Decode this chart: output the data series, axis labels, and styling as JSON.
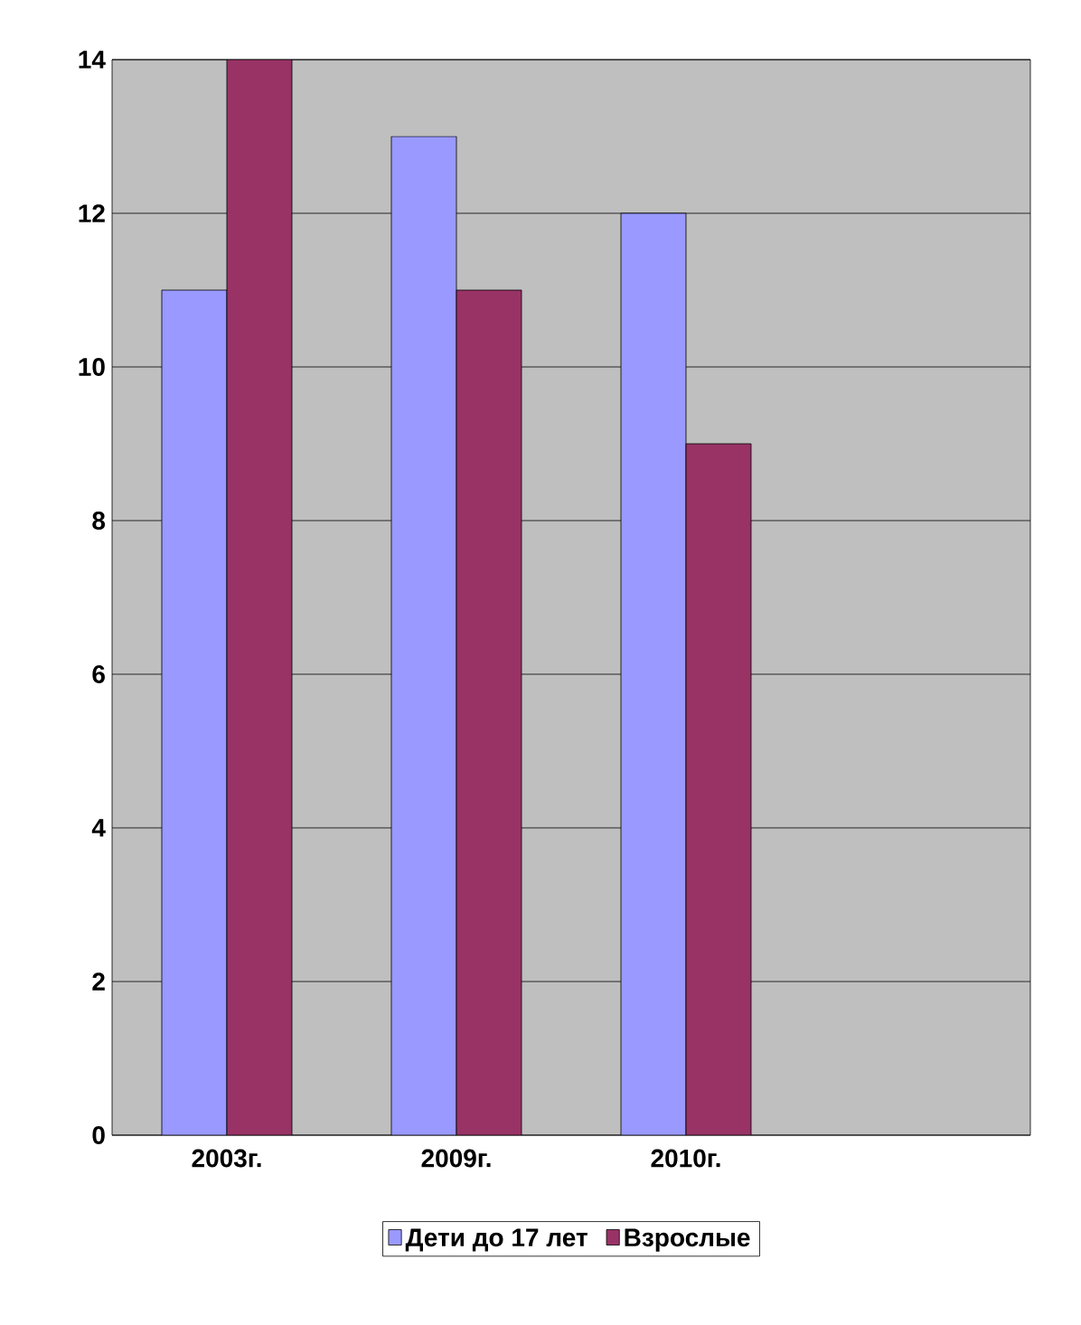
{
  "chart_data": {
    "type": "bar",
    "categories": [
      "2003г.",
      "2009г.",
      "2010г.",
      null
    ],
    "series": [
      {
        "name": "Дети до 17 лет",
        "color": "#9999ff",
        "values": [
          11,
          13,
          12,
          null
        ]
      },
      {
        "name": "Взрослые",
        "color": "#993366",
        "values": [
          14,
          11,
          9,
          null
        ]
      }
    ],
    "ylim": [
      0,
      14
    ],
    "yticks": [
      0,
      2,
      4,
      6,
      8,
      10,
      12,
      14
    ],
    "grid": "y",
    "legend": "bottom"
  }
}
